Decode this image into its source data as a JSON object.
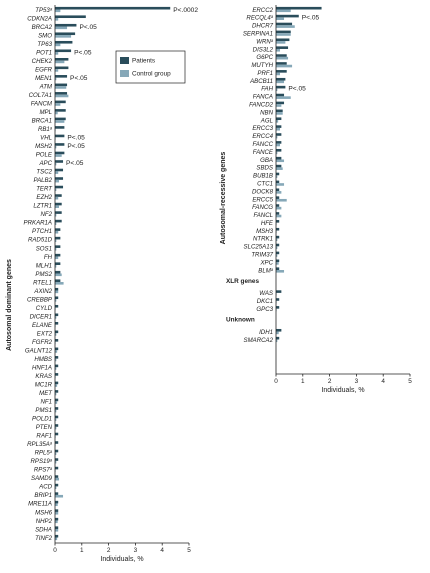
{
  "colors": {
    "patients": "#2a4d5b",
    "control": "#86a8b8",
    "axis": "#222222"
  },
  "chart_data": [
    {
      "type": "bar",
      "orientation": "horizontal",
      "ylabel": "Autosomal dominant genes",
      "xlabel": "Individuals, %",
      "xlim": [
        0,
        5
      ],
      "xticks": [
        "0",
        "1",
        "2",
        "3",
        "4",
        "5"
      ],
      "legend": {
        "position": "top-right",
        "entries": [
          "Patients",
          "Control group"
        ]
      },
      "rows": [
        {
          "label": "TP53ᵃ",
          "patients": 4.3,
          "control": 0.2,
          "note": "P<.0002"
        },
        {
          "label": "CDKN2A",
          "patients": 1.15,
          "control": 0.12,
          "note": ""
        },
        {
          "label": "BRCA2",
          "patients": 0.8,
          "control": 0.45,
          "note": "P<.05"
        },
        {
          "label": "SMO",
          "patients": 0.75,
          "control": 0.6,
          "note": ""
        },
        {
          "label": "TP63",
          "patients": 0.65,
          "control": 0.2,
          "note": ""
        },
        {
          "label": "POT1",
          "patients": 0.6,
          "control": 0.12,
          "note": "P<.05"
        },
        {
          "label": "CHEK2",
          "patients": 0.5,
          "control": 0.35,
          "note": ""
        },
        {
          "label": "EGFR",
          "patients": 0.5,
          "control": 0.12,
          "note": ""
        },
        {
          "label": "MEN1",
          "patients": 0.45,
          "control": 0.05,
          "note": "P<.05"
        },
        {
          "label": "ATM",
          "patients": 0.45,
          "control": 0.42,
          "note": ""
        },
        {
          "label": "COL7A1",
          "patients": 0.45,
          "control": 0.5,
          "note": ""
        },
        {
          "label": "FANCM",
          "patients": 0.4,
          "control": 0.2,
          "note": ""
        },
        {
          "label": "MPL",
          "patients": 0.4,
          "control": 0.1,
          "note": ""
        },
        {
          "label": "BRCA1",
          "patients": 0.4,
          "control": 0.35,
          "note": ""
        },
        {
          "label": "RB1ᵃ",
          "patients": 0.35,
          "control": 0.02,
          "note": ""
        },
        {
          "label": "VHL",
          "patients": 0.35,
          "control": 0.02,
          "note": "P<.05"
        },
        {
          "label": "MSH2",
          "patients": 0.35,
          "control": 0.05,
          "note": "P<.05"
        },
        {
          "label": "POLE",
          "patients": 0.35,
          "control": 0.25,
          "note": ""
        },
        {
          "label": "APC",
          "patients": 0.3,
          "control": 0.05,
          "note": "P<.05"
        },
        {
          "label": "TSC2",
          "patients": 0.3,
          "control": 0.12,
          "note": ""
        },
        {
          "label": "PALB2",
          "patients": 0.3,
          "control": 0.15,
          "note": ""
        },
        {
          "label": "TERT",
          "patients": 0.3,
          "control": 0.05,
          "note": ""
        },
        {
          "label": "EZH2",
          "patients": 0.25,
          "control": 0.12,
          "note": ""
        },
        {
          "label": "LZTR1",
          "patients": 0.25,
          "control": 0.15,
          "note": ""
        },
        {
          "label": "NF2",
          "patients": 0.25,
          "control": 0.05,
          "note": ""
        },
        {
          "label": "PRKAR1A",
          "patients": 0.25,
          "control": 0.05,
          "note": ""
        },
        {
          "label": "PTCH1",
          "patients": 0.2,
          "control": 0.12,
          "note": ""
        },
        {
          "label": "RAD51D",
          "patients": 0.2,
          "control": 0.05,
          "note": ""
        },
        {
          "label": "SOS1",
          "patients": 0.2,
          "control": 0.05,
          "note": ""
        },
        {
          "label": "FH",
          "patients": 0.2,
          "control": 0.12,
          "note": ""
        },
        {
          "label": "MLH1",
          "patients": 0.2,
          "control": 0.05,
          "note": ""
        },
        {
          "label": "PMS2",
          "patients": 0.2,
          "control": 0.25,
          "note": ""
        },
        {
          "label": "RTEL1",
          "patients": 0.2,
          "control": 0.32,
          "note": ""
        },
        {
          "label": "AXIN2",
          "patients": 0.12,
          "control": 0.12,
          "note": ""
        },
        {
          "label": "CREBBP",
          "patients": 0.12,
          "control": 0.05,
          "note": ""
        },
        {
          "label": "CYLD",
          "patients": 0.12,
          "control": 0.02,
          "note": ""
        },
        {
          "label": "DICER1",
          "patients": 0.12,
          "control": 0.05,
          "note": ""
        },
        {
          "label": "ELANE",
          "patients": 0.12,
          "control": 0.02,
          "note": ""
        },
        {
          "label": "EXT2",
          "patients": 0.12,
          "control": 0.05,
          "note": ""
        },
        {
          "label": "FGFR2",
          "patients": 0.12,
          "control": 0.02,
          "note": ""
        },
        {
          "label": "GALNT12",
          "patients": 0.12,
          "control": 0.08,
          "note": ""
        },
        {
          "label": "HMBS",
          "patients": 0.12,
          "control": 0.05,
          "note": ""
        },
        {
          "label": "HNF1A",
          "patients": 0.12,
          "control": 0.05,
          "note": ""
        },
        {
          "label": "KRAS",
          "patients": 0.12,
          "control": 0.02,
          "note": ""
        },
        {
          "label": "MC1R",
          "patients": 0.12,
          "control": 0.08,
          "note": ""
        },
        {
          "label": "MET",
          "patients": 0.12,
          "control": 0.05,
          "note": ""
        },
        {
          "label": "NF1",
          "patients": 0.12,
          "control": 0.08,
          "note": ""
        },
        {
          "label": "PMS1",
          "patients": 0.12,
          "control": 0.05,
          "note": ""
        },
        {
          "label": "POLD1",
          "patients": 0.12,
          "control": 0.05,
          "note": ""
        },
        {
          "label": "PTEN",
          "patients": 0.12,
          "control": 0.05,
          "note": ""
        },
        {
          "label": "RAF1",
          "patients": 0.12,
          "control": 0.02,
          "note": ""
        },
        {
          "label": "RPL35Aᵃ",
          "patients": 0.12,
          "control": 0.02,
          "note": ""
        },
        {
          "label": "RPL5ᵃ",
          "patients": 0.12,
          "control": 0.05,
          "note": ""
        },
        {
          "label": "RPS19ᵃ",
          "patients": 0.12,
          "control": 0.05,
          "note": ""
        },
        {
          "label": "RPS7ᵃ",
          "patients": 0.12,
          "control": 0.02,
          "note": ""
        },
        {
          "label": "SAMD9",
          "patients": 0.12,
          "control": 0.15,
          "note": ""
        },
        {
          "label": "ACD",
          "patients": 0.12,
          "control": 0.05,
          "note": ""
        },
        {
          "label": "BRIP1",
          "patients": 0.12,
          "control": 0.3,
          "note": ""
        },
        {
          "label": "MRE11A",
          "patients": 0.12,
          "control": 0.1,
          "note": ""
        },
        {
          "label": "MSH6",
          "patients": 0.12,
          "control": 0.12,
          "note": ""
        },
        {
          "label": "NHP2",
          "patients": 0.12,
          "control": 0.1,
          "note": ""
        },
        {
          "label": "SDHA",
          "patients": 0.12,
          "control": 0.12,
          "note": ""
        },
        {
          "label": "TINF2",
          "patients": 0.12,
          "control": 0.08,
          "note": ""
        }
      ]
    },
    {
      "type": "bar",
      "orientation": "horizontal",
      "ylabel": "Autosomal-recessive genes",
      "xlabel": "Individuals, %",
      "xlim": [
        0,
        5
      ],
      "xticks": [
        "0",
        "1",
        "2",
        "3",
        "4",
        "5"
      ],
      "sections": [
        {
          "title": "",
          "rows": [
            {
              "label": "ERCC2",
              "patients": 1.7,
              "control": 0.55,
              "note": ""
            },
            {
              "label": "RECQL4ᵃ",
              "patients": 0.85,
              "control": 0.3,
              "note": "P<.05"
            },
            {
              "label": "DHCR7",
              "patients": 0.6,
              "control": 0.7,
              "note": ""
            },
            {
              "label": "SERPINA1",
              "patients": 0.55,
              "control": 0.55,
              "note": ""
            },
            {
              "label": "WRNᵃ",
              "patients": 0.5,
              "control": 0.35,
              "note": ""
            },
            {
              "label": "DIS3L2",
              "patients": 0.45,
              "control": 0.15,
              "note": ""
            },
            {
              "label": "G6PC",
              "patients": 0.4,
              "control": 0.45,
              "note": ""
            },
            {
              "label": "MUTYH",
              "patients": 0.4,
              "control": 0.6,
              "note": ""
            },
            {
              "label": "PRF1",
              "patients": 0.4,
              "control": 0.15,
              "note": ""
            },
            {
              "label": "ABCB11",
              "patients": 0.35,
              "control": 0.3,
              "note": ""
            },
            {
              "label": "FAH",
              "patients": 0.35,
              "control": 0.05,
              "note": "P<.05"
            },
            {
              "label": "FANCA",
              "patients": 0.3,
              "control": 0.55,
              "note": ""
            },
            {
              "label": "FANCD2",
              "patients": 0.3,
              "control": 0.2,
              "note": ""
            },
            {
              "label": "NBN",
              "patients": 0.25,
              "control": 0.25,
              "note": ""
            },
            {
              "label": "AGL",
              "patients": 0.2,
              "control": 0.08,
              "note": ""
            },
            {
              "label": "ERCC3",
              "patients": 0.2,
              "control": 0.15,
              "note": ""
            },
            {
              "label": "ERCC4",
              "patients": 0.2,
              "control": 0.05,
              "note": ""
            },
            {
              "label": "FANCC",
              "patients": 0.2,
              "control": 0.15,
              "note": ""
            },
            {
              "label": "FANCE",
              "patients": 0.2,
              "control": 0.05,
              "note": ""
            },
            {
              "label": "GBA",
              "patients": 0.2,
              "control": 0.3,
              "note": ""
            },
            {
              "label": "SBDS",
              "patients": 0.2,
              "control": 0.25,
              "note": ""
            },
            {
              "label": "BUB1B",
              "patients": 0.12,
              "control": 0.05,
              "note": ""
            },
            {
              "label": "CTC1",
              "patients": 0.12,
              "control": 0.3,
              "note": ""
            },
            {
              "label": "DOCK8",
              "patients": 0.12,
              "control": 0.2,
              "note": ""
            },
            {
              "label": "ERCC5",
              "patients": 0.12,
              "control": 0.4,
              "note": ""
            },
            {
              "label": "FANCG",
              "patients": 0.12,
              "control": 0.2,
              "note": ""
            },
            {
              "label": "FANCL",
              "patients": 0.12,
              "control": 0.2,
              "note": ""
            },
            {
              "label": "HFE",
              "patients": 0.12,
              "control": 0.02,
              "note": ""
            },
            {
              "label": "MSH3",
              "patients": 0.12,
              "control": 0.02,
              "note": ""
            },
            {
              "label": "NTRK1",
              "patients": 0.12,
              "control": 0.05,
              "note": ""
            },
            {
              "label": "SLC25A13",
              "patients": 0.12,
              "control": 0.05,
              "note": ""
            },
            {
              "label": "TRIM37",
              "patients": 0.12,
              "control": 0.05,
              "note": ""
            },
            {
              "label": "XPC",
              "patients": 0.12,
              "control": 0.1,
              "note": ""
            },
            {
              "label": "BLMᵃ",
              "patients": 0.12,
              "control": 0.3,
              "note": ""
            }
          ]
        },
        {
          "title": "XLR genes",
          "rows": [
            {
              "label": "WAS",
              "patients": 0.2,
              "control": 0.02,
              "note": ""
            },
            {
              "label": "DKC1",
              "patients": 0.12,
              "control": 0.02,
              "note": ""
            },
            {
              "label": "GPC3",
              "patients": 0.12,
              "control": 0.02,
              "note": ""
            }
          ]
        },
        {
          "title": "Unknown",
          "rows": [
            {
              "label": "IDH1",
              "patients": 0.2,
              "control": 0.1,
              "note": ""
            },
            {
              "label": "SMARCA2",
              "patients": 0.12,
              "control": 0.05,
              "note": ""
            }
          ]
        }
      ]
    }
  ]
}
